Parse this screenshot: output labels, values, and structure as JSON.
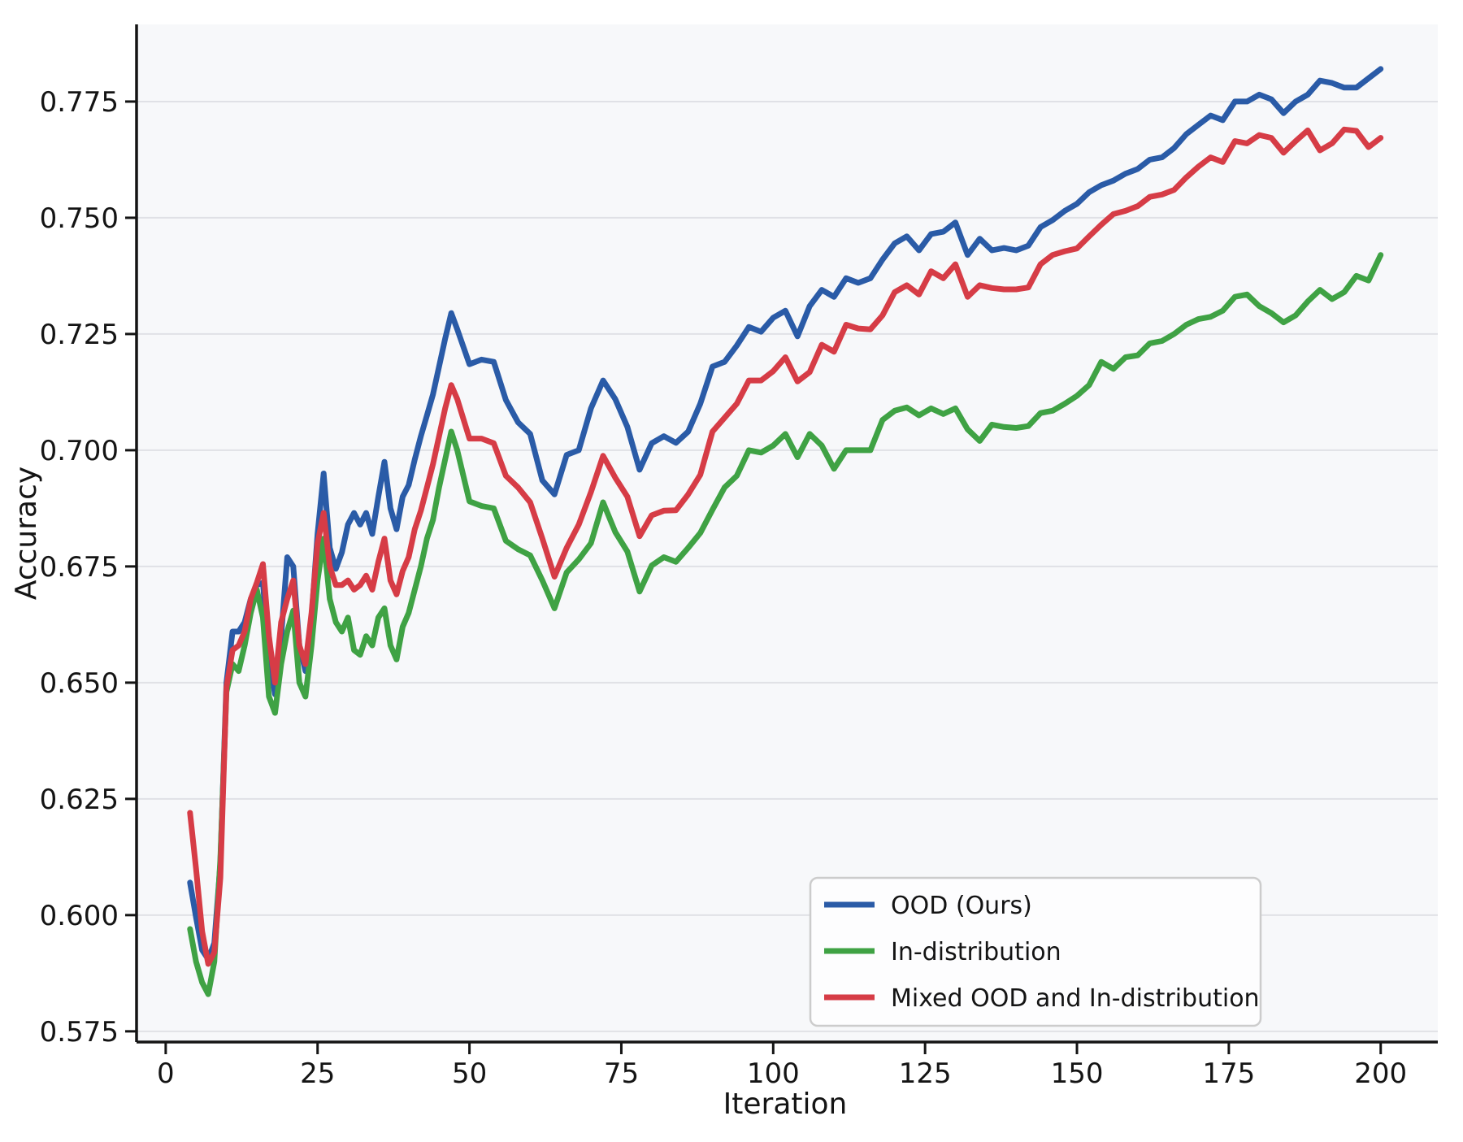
{
  "chart_data": {
    "type": "line",
    "title": "",
    "xlabel": "Iteration",
    "ylabel": "Accuracy",
    "xlim": [
      -4.8,
      209.4
    ],
    "ylim": [
      0.5727,
      0.7916
    ],
    "grid": "horizontal",
    "legend_position": "lower right",
    "xticks": [
      0,
      25,
      50,
      75,
      100,
      125,
      150,
      175,
      200
    ],
    "xtick_labels": [
      "0",
      "25",
      "50",
      "75",
      "100",
      "125",
      "150",
      "175",
      "200"
    ],
    "yticks": [
      0.575,
      0.6,
      0.625,
      0.65,
      0.675,
      0.7,
      0.725,
      0.75,
      0.775
    ],
    "ytick_labels": [
      "0.575",
      "0.600",
      "0.625",
      "0.650",
      "0.675",
      "0.700",
      "0.725",
      "0.750",
      "0.775"
    ],
    "x": [
      4,
      5,
      6,
      7,
      8,
      9,
      10,
      11,
      12,
      13,
      14,
      15,
      16,
      17,
      18,
      19,
      20,
      21,
      22,
      23,
      24,
      25,
      26,
      27,
      28,
      29,
      30,
      31,
      32,
      33,
      34,
      35,
      36,
      37,
      38,
      39,
      40,
      41,
      42,
      43,
      44,
      45,
      46,
      47,
      48,
      50,
      52,
      54,
      56,
      58,
      60,
      62,
      64,
      66,
      68,
      70,
      72,
      74,
      76,
      78,
      80,
      82,
      84,
      86,
      88,
      90,
      92,
      94,
      96,
      98,
      100,
      102,
      104,
      106,
      108,
      110,
      112,
      114,
      116,
      118,
      120,
      122,
      124,
      126,
      128,
      130,
      132,
      134,
      136,
      138,
      140,
      142,
      144,
      146,
      148,
      150,
      152,
      154,
      156,
      158,
      160,
      162,
      164,
      166,
      168,
      170,
      172,
      174,
      176,
      178,
      180,
      182,
      184,
      186,
      188,
      190,
      192,
      194,
      196,
      198,
      200
    ],
    "series": [
      {
        "name": "OOD (Ours)",
        "color": "#2a5ba7",
        "values": [
          0.607,
          0.5995,
          0.5925,
          0.5905,
          0.594,
          0.611,
          0.65,
          0.661,
          0.661,
          0.663,
          0.668,
          0.671,
          0.6715,
          0.655,
          0.6475,
          0.66,
          0.677,
          0.675,
          0.658,
          0.6525,
          0.664,
          0.682,
          0.695,
          0.679,
          0.6745,
          0.678,
          0.684,
          0.6865,
          0.684,
          0.6865,
          0.682,
          0.69,
          0.6975,
          0.6875,
          0.683,
          0.69,
          0.6925,
          0.698,
          0.703,
          0.7075,
          0.712,
          0.718,
          0.724,
          0.7295,
          0.726,
          0.7185,
          0.7195,
          0.719,
          0.7108,
          0.706,
          0.7035,
          0.6935,
          0.6905,
          0.699,
          0.7,
          0.709,
          0.715,
          0.711,
          0.705,
          0.6958,
          0.7015,
          0.703,
          0.7016,
          0.704,
          0.71,
          0.718,
          0.719,
          0.7225,
          0.7265,
          0.7255,
          0.7285,
          0.73,
          0.7245,
          0.731,
          0.7345,
          0.733,
          0.737,
          0.736,
          0.737,
          0.741,
          0.7445,
          0.746,
          0.743,
          0.7465,
          0.747,
          0.749,
          0.742,
          0.7455,
          0.743,
          0.7435,
          0.743,
          0.744,
          0.748,
          0.7495,
          0.7515,
          0.753,
          0.7555,
          0.757,
          0.758,
          0.7595,
          0.7605,
          0.7625,
          0.763,
          0.765,
          0.768,
          0.77,
          0.772,
          0.771,
          0.775,
          0.775,
          0.7765,
          0.7755,
          0.7725,
          0.775,
          0.7765,
          0.7795,
          0.779,
          0.778,
          0.778,
          0.78,
          0.782
        ]
      },
      {
        "name": "In-distribution",
        "color": "#3fa244",
        "values": [
          0.597,
          0.59,
          0.5855,
          0.583,
          0.59,
          0.612,
          0.648,
          0.654,
          0.6525,
          0.658,
          0.665,
          0.67,
          0.664,
          0.647,
          0.6435,
          0.654,
          0.661,
          0.6655,
          0.65,
          0.647,
          0.658,
          0.672,
          0.681,
          0.668,
          0.663,
          0.661,
          0.664,
          0.657,
          0.656,
          0.66,
          0.658,
          0.664,
          0.666,
          0.658,
          0.655,
          0.662,
          0.665,
          0.67,
          0.675,
          0.681,
          0.685,
          0.692,
          0.698,
          0.704,
          0.7,
          0.689,
          0.688,
          0.6875,
          0.6805,
          0.6787,
          0.6774,
          0.672,
          0.666,
          0.6737,
          0.6765,
          0.68,
          0.6888,
          0.6824,
          0.6782,
          0.6696,
          0.6752,
          0.677,
          0.676,
          0.679,
          0.6822,
          0.6872,
          0.692,
          0.6945,
          0.7,
          0.6995,
          0.701,
          0.7035,
          0.6985,
          0.7035,
          0.701,
          0.696,
          0.7,
          0.7,
          0.7,
          0.7065,
          0.7085,
          0.7092,
          0.7075,
          0.709,
          0.7078,
          0.709,
          0.7045,
          0.702,
          0.7055,
          0.705,
          0.7048,
          0.7052,
          0.708,
          0.7085,
          0.71,
          0.7117,
          0.714,
          0.719,
          0.7175,
          0.72,
          0.7204,
          0.723,
          0.7235,
          0.725,
          0.727,
          0.7282,
          0.7287,
          0.73,
          0.733,
          0.7335,
          0.731,
          0.7295,
          0.7275,
          0.729,
          0.732,
          0.7345,
          0.7325,
          0.734,
          0.7375,
          0.7365,
          0.742
        ]
      },
      {
        "name": "Mixed OOD and In-distribution",
        "color": "#d63c46",
        "values": [
          0.622,
          0.61,
          0.5965,
          0.5895,
          0.592,
          0.608,
          0.649,
          0.657,
          0.658,
          0.661,
          0.668,
          0.6715,
          0.6755,
          0.66,
          0.65,
          0.663,
          0.668,
          0.672,
          0.658,
          0.654,
          0.665,
          0.68,
          0.6865,
          0.675,
          0.671,
          0.671,
          0.672,
          0.67,
          0.671,
          0.673,
          0.67,
          0.676,
          0.681,
          0.672,
          0.669,
          0.674,
          0.677,
          0.683,
          0.687,
          0.692,
          0.697,
          0.703,
          0.709,
          0.714,
          0.711,
          0.7025,
          0.7025,
          0.7015,
          0.6945,
          0.692,
          0.6888,
          0.681,
          0.6728,
          0.679,
          0.684,
          0.691,
          0.6988,
          0.6941,
          0.69,
          0.6815,
          0.686,
          0.687,
          0.6871,
          0.6905,
          0.6947,
          0.704,
          0.707,
          0.71,
          0.715,
          0.715,
          0.717,
          0.72,
          0.7148,
          0.7168,
          0.7227,
          0.7212,
          0.727,
          0.7262,
          0.726,
          0.729,
          0.734,
          0.7355,
          0.7335,
          0.7385,
          0.737,
          0.74,
          0.733,
          0.7355,
          0.7349,
          0.7346,
          0.7346,
          0.735,
          0.74,
          0.742,
          0.7428,
          0.7434,
          0.746,
          0.7485,
          0.7508,
          0.7515,
          0.7525,
          0.7545,
          0.755,
          0.756,
          0.7587,
          0.761,
          0.763,
          0.762,
          0.7665,
          0.766,
          0.7678,
          0.7672,
          0.764,
          0.7665,
          0.7688,
          0.7645,
          0.766,
          0.769,
          0.7687,
          0.7652,
          0.7672
        ]
      }
    ]
  },
  "styles": {
    "figure_bg": "#ffffff",
    "plot_bg": "#f7f8fa",
    "grid_color": "#e0e1e6",
    "spine_color": "#141414",
    "text_color": "#141414",
    "legend_bg": "#fdfdfe",
    "legend_border": "#cccccc",
    "line_width": 7
  }
}
